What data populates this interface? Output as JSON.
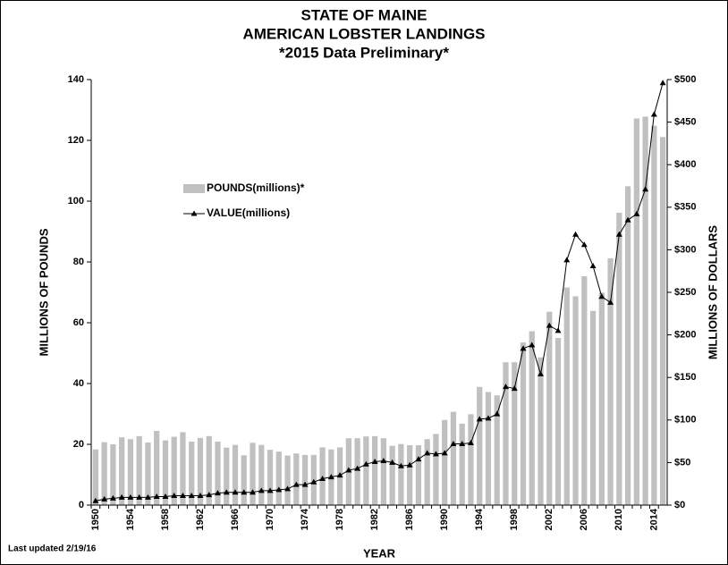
{
  "chart_data": {
    "type": "bar",
    "title": [
      "STATE OF MAINE",
      "AMERICAN LOBSTER LANDINGS",
      "*2015 Data Preliminary*"
    ],
    "ylabel": "MILLIONS OF POUNDS",
    "y2label": "MILLIONS OF DOLLARS",
    "xlabel": "YEAR",
    "footnote": "Last updated 2/19/16",
    "legend": "upper left",
    "grid": false,
    "categories": [
      "1950",
      null,
      null,
      null,
      "1954",
      null,
      null,
      null,
      "1958",
      null,
      null,
      null,
      "1962",
      null,
      null,
      null,
      "1966",
      null,
      null,
      null,
      "1970",
      null,
      null,
      null,
      "1974",
      null,
      null,
      null,
      "1978",
      null,
      null,
      null,
      "1982",
      null,
      null,
      null,
      "1986",
      null,
      null,
      null,
      "1990",
      null,
      null,
      null,
      "1994",
      null,
      null,
      null,
      "1998",
      null,
      null,
      null,
      "2002",
      null,
      null,
      null,
      "2006",
      null,
      null,
      null,
      "2010",
      null,
      null,
      null,
      "2014",
      null
    ],
    "series": [
      {
        "name": "POUNDS(millions)*",
        "type": "bar",
        "color": "#c0c0c0",
        "values": [
          18.3,
          20.7,
          20.0,
          22.3,
          21.7,
          22.7,
          20.6,
          24.4,
          21.3,
          22.5,
          24.0,
          20.9,
          22.1,
          22.7,
          20.9,
          18.9,
          19.8,
          16.4,
          20.5,
          19.8,
          18.2,
          17.6,
          16.3,
          17.0,
          16.5,
          16.5,
          19.0,
          18.3,
          19.0,
          22.0,
          22.0,
          22.6,
          22.7,
          22.0,
          19.5,
          20.1,
          19.7,
          19.7,
          21.7,
          23.4,
          28.0,
          30.7,
          26.8,
          29.9,
          38.9,
          37.2,
          36.1,
          47.0,
          47.0,
          53.5,
          57.2,
          48.6,
          63.6,
          55.0,
          71.6,
          68.7,
          75.3,
          63.9,
          69.9,
          81.2,
          96.2,
          104.9,
          127.2,
          127.8,
          124.8,
          121.1
        ]
      },
      {
        "name": "VALUE(millions)",
        "type": "line",
        "axis": "y2",
        "color": "#000000",
        "values": [
          5,
          7,
          8,
          9,
          9,
          9,
          9,
          10,
          10,
          11,
          11,
          11,
          11,
          12,
          14,
          15,
          15,
          15,
          15,
          17,
          17,
          18,
          19,
          24,
          24,
          27,
          31,
          33,
          35,
          41,
          43,
          48,
          51,
          52,
          50,
          46,
          47,
          54,
          61,
          60,
          61,
          72,
          72,
          73,
          101,
          102,
          107,
          139,
          137,
          184,
          188,
          154,
          211,
          205,
          288,
          318,
          306,
          281,
          245,
          238,
          318,
          335,
          342,
          371,
          459,
          496
        ]
      }
    ],
    "ylim": [
      0,
      140
    ],
    "yticks": [
      0,
      20,
      40,
      60,
      80,
      100,
      120,
      140
    ],
    "y2lim": [
      0,
      500
    ],
    "y2ticks": [
      {
        "value": 0,
        "label": "$0"
      },
      {
        "value": 50,
        "label": "$50"
      },
      {
        "value": 100,
        "label": "$100"
      },
      {
        "value": 150,
        "label": "$150"
      },
      {
        "value": 200,
        "label": "$200"
      },
      {
        "value": 250,
        "label": "$250"
      },
      {
        "value": 300,
        "label": "$300"
      },
      {
        "value": 350,
        "label": "$350"
      },
      {
        "value": 400,
        "label": "$400"
      },
      {
        "value": 450,
        "label": "$450"
      },
      {
        "value": 500,
        "label": "$500"
      }
    ]
  }
}
